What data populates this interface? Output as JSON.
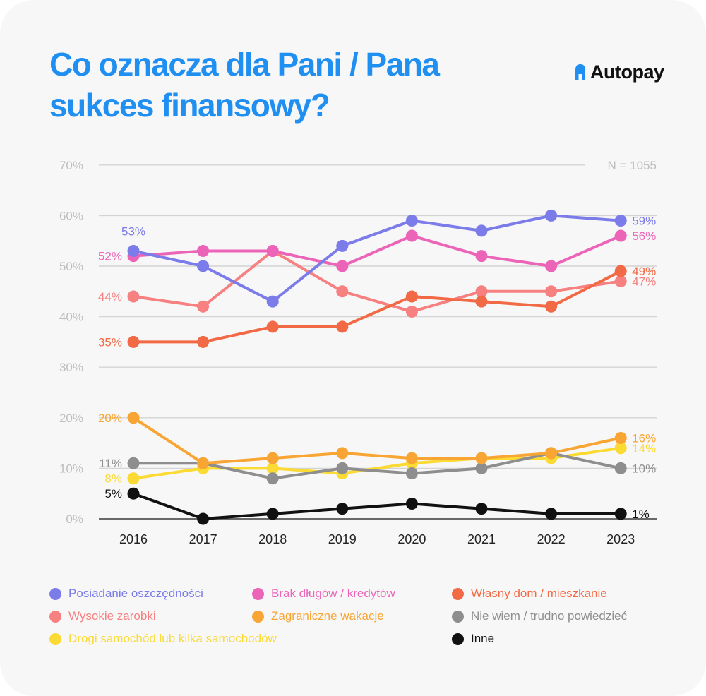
{
  "header": {
    "title_line1": "Co oznacza dla Pani / Pana",
    "title_line2": "sukces finansowy?",
    "logo_text": "Autopay",
    "title_color": "#1f8ff2"
  },
  "chart_data": {
    "type": "line",
    "x": [
      "2016",
      "2017",
      "2018",
      "2019",
      "2020",
      "2021",
      "2022",
      "2023"
    ],
    "y_ticks": [
      "0%",
      "10%",
      "20%",
      "30%",
      "40%",
      "50%",
      "60%",
      "70%"
    ],
    "ylim": [
      0,
      70
    ],
    "grid": true,
    "annotation": "N = 1055",
    "legend_placement": "bottom",
    "series": [
      {
        "name": "Posiadanie oszczędności",
        "color": "#7b7bea",
        "values": [
          53,
          50,
          43,
          54,
          59,
          57,
          60,
          59
        ],
        "start_label": "53%",
        "end_label": "59%"
      },
      {
        "name": "Brak długów / kredytów",
        "color": "#ec64b8",
        "values": [
          52,
          53,
          53,
          50,
          56,
          52,
          50,
          56
        ],
        "start_label": "52%",
        "end_label": "56%"
      },
      {
        "name": "Własny dom / mieszkanie",
        "color": "#f26a45",
        "values": [
          35,
          35,
          38,
          38,
          44,
          43,
          42,
          49
        ],
        "start_label": "35%",
        "end_label": "49%"
      },
      {
        "name": "Wysokie zarobki",
        "color": "#f78080",
        "values": [
          44,
          42,
          53,
          45,
          41,
          45,
          45,
          47
        ],
        "start_label": "44%",
        "end_label": "47%"
      },
      {
        "name": "Zagraniczne wakacje",
        "color": "#f8a534",
        "values": [
          20,
          11,
          12,
          13,
          12,
          12,
          13,
          16
        ],
        "start_label": "20%",
        "end_label": "16%"
      },
      {
        "name": "Nie wiem / trudno powiedzieć",
        "color": "#8e8e8e",
        "values": [
          11,
          11,
          8,
          10,
          9,
          10,
          13,
          10
        ],
        "start_label": "11%",
        "end_label": "10%"
      },
      {
        "name": "Drogi samochód lub kilka samochodów",
        "color": "#fada33",
        "values": [
          8,
          10,
          10,
          9,
          11,
          12,
          12,
          14
        ],
        "start_label": "8%",
        "end_label": "14%"
      },
      {
        "name": "Inne",
        "color": "#111111",
        "values": [
          5,
          0,
          1,
          2,
          3,
          2,
          1,
          1
        ],
        "start_label": "5%",
        "end_label": "1%"
      }
    ]
  }
}
